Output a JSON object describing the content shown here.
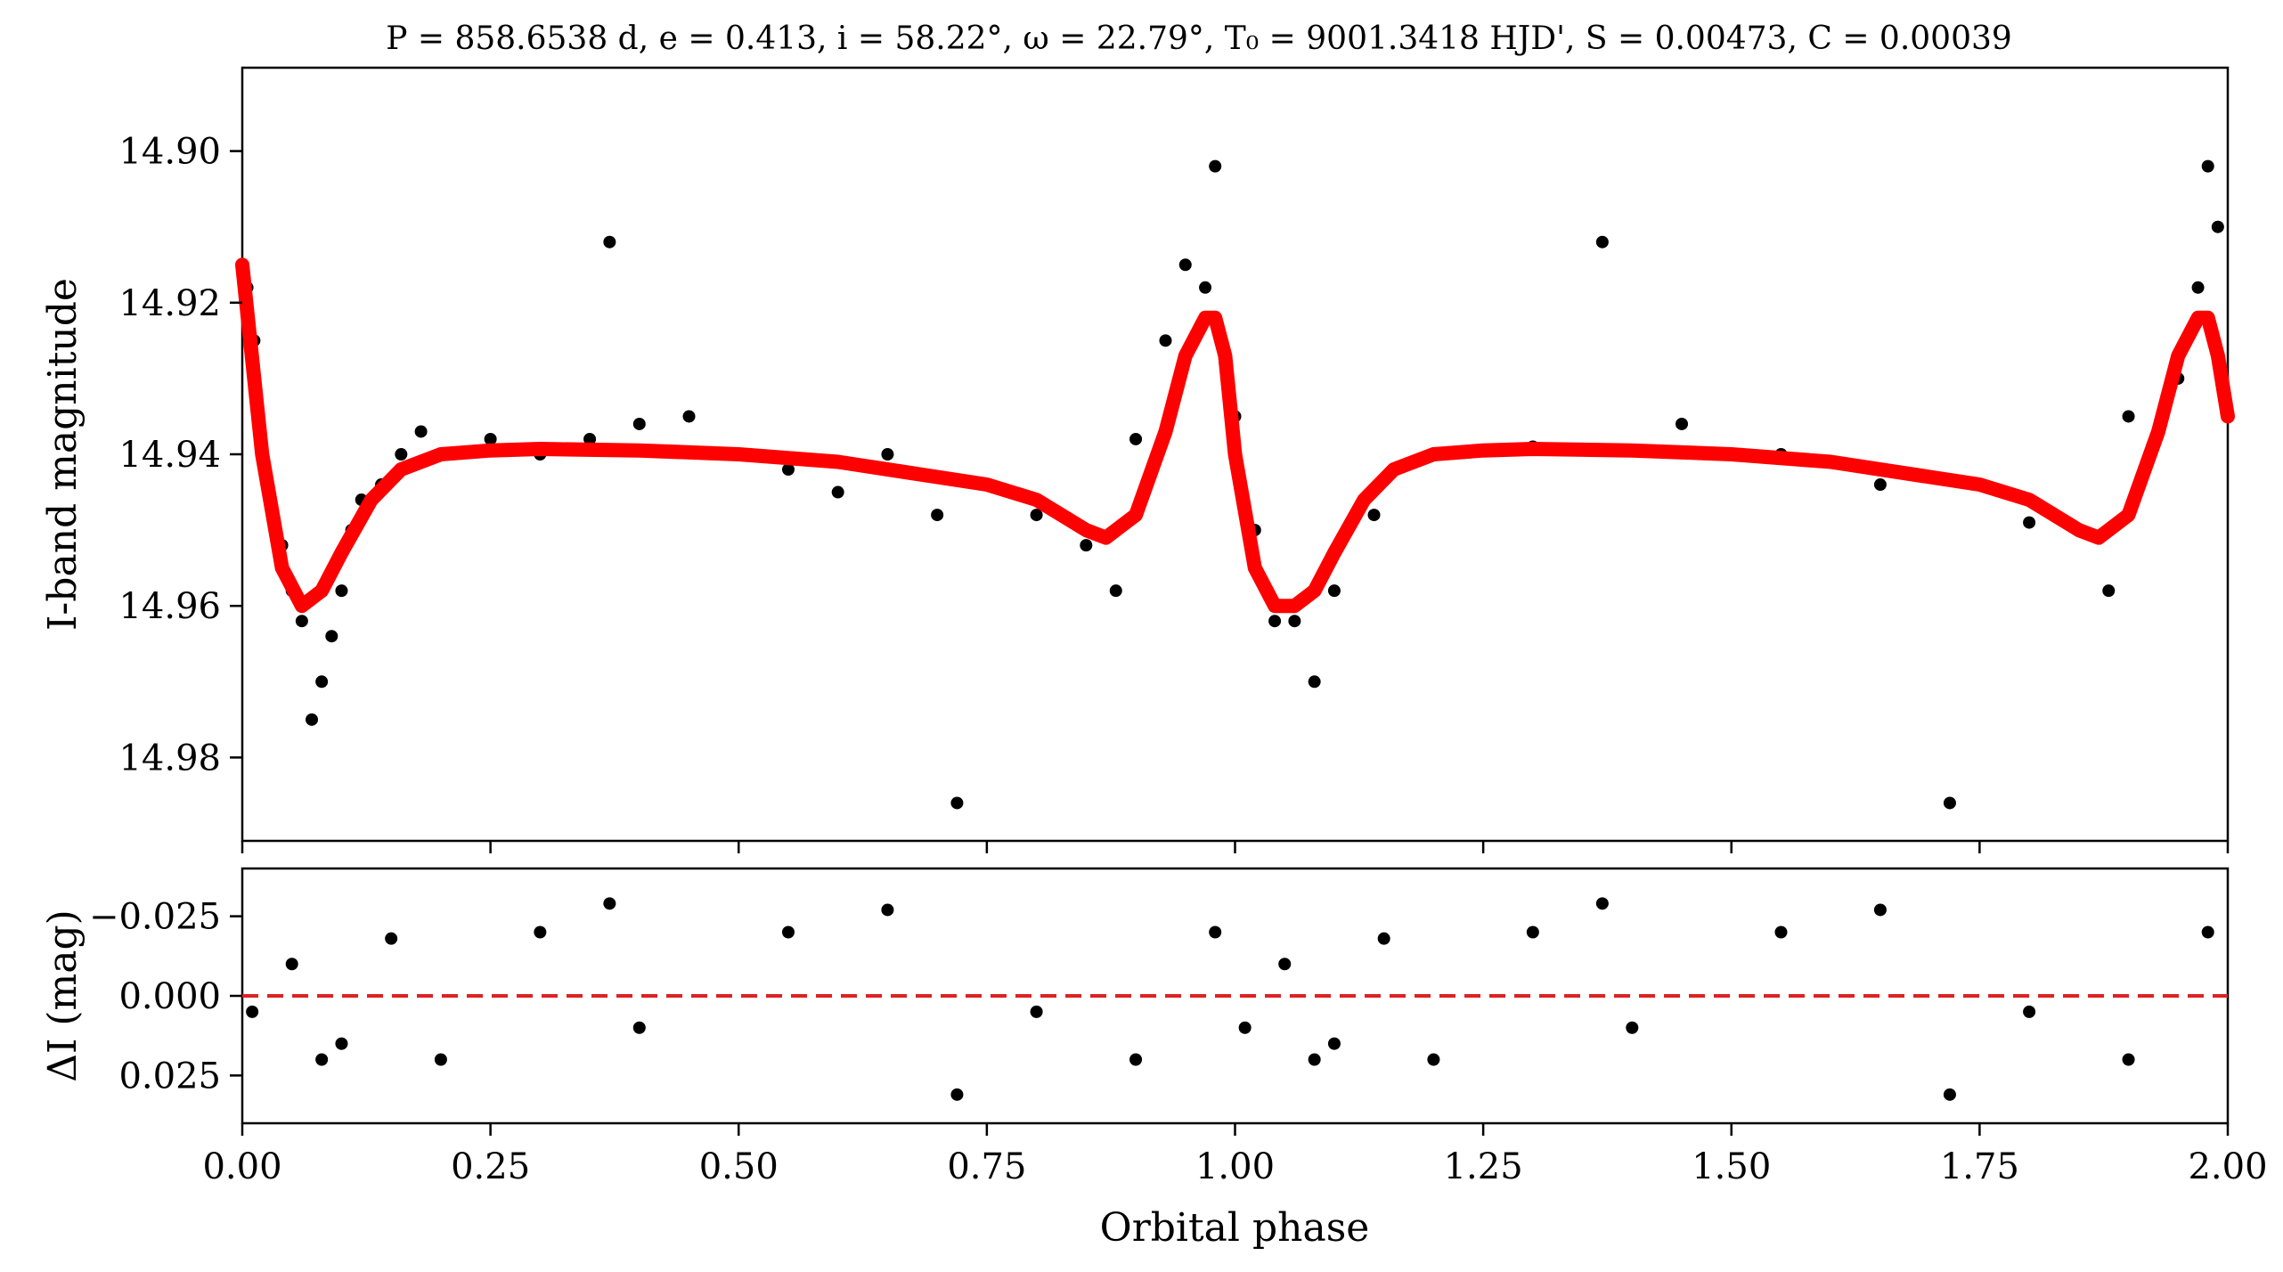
{
  "chart_data": [
    {
      "panel": "light curve",
      "type": "scatter",
      "title": "P = 858.6538 d, e = 0.413, i = 58.22°, ω = 22.79°, T₀ = 9001.3418 HJD', S = 0.00473, C = 0.00039",
      "xlabel": "",
      "ylabel": "I-band magnitude",
      "xlim": [
        0.0,
        2.0
      ],
      "ylim": [
        14.991,
        14.889
      ],
      "y_inverted": true,
      "xticks": [
        0.0,
        0.25,
        0.5,
        0.75,
        1.0,
        1.25,
        1.5,
        1.75,
        2.0
      ],
      "yticks": [
        14.9,
        14.92,
        14.94,
        14.96,
        14.98
      ],
      "ytick_labels": [
        "14.90",
        "14.92",
        "14.94",
        "14.96",
        "14.98"
      ],
      "series": [
        {
          "kind": "points",
          "color": "#000000",
          "description_values": "observed photometry, phase-folded and repeated over two cycles",
          "x": [
            0.005,
            0.012,
            0.02,
            0.03,
            0.04,
            0.05,
            0.06,
            0.07,
            0.08,
            0.09,
            0.1,
            0.11,
            0.12,
            0.14,
            0.16,
            0.18,
            0.2,
            0.25,
            0.3,
            0.35,
            0.37,
            0.4,
            0.45,
            0.5,
            0.55,
            0.6,
            0.65,
            0.7,
            0.72,
            0.75,
            0.8,
            0.85,
            0.88,
            0.9,
            0.93,
            0.95,
            0.97,
            0.98,
            0.99,
            1.0,
            1.02,
            1.04,
            1.06,
            1.08,
            1.1,
            1.14,
            1.2,
            1.3,
            1.37,
            1.45,
            1.55,
            1.65,
            1.72,
            1.8,
            1.88,
            1.9,
            1.95,
            1.97,
            1.98,
            1.99
          ],
          "y": [
            14.918,
            14.925,
            14.94,
            14.948,
            14.952,
            14.958,
            14.962,
            14.975,
            14.97,
            14.964,
            14.958,
            14.95,
            14.946,
            14.944,
            14.94,
            14.937,
            14.94,
            14.938,
            14.94,
            14.938,
            14.912,
            14.936,
            14.935,
            14.94,
            14.942,
            14.945,
            14.94,
            14.948,
            14.986,
            14.944,
            14.948,
            14.952,
            14.958,
            14.938,
            14.925,
            14.915,
            14.918,
            14.902,
            14.928,
            14.935,
            14.95,
            14.962,
            14.962,
            14.97,
            14.958,
            14.948,
            14.94,
            14.939,
            14.912,
            14.936,
            14.94,
            14.944,
            14.986,
            14.949,
            14.958,
            14.935,
            14.93,
            14.918,
            14.902,
            14.91
          ]
        },
        {
          "kind": "model",
          "color": "#ff0000",
          "x": [
            0.0,
            0.02,
            0.04,
            0.06,
            0.08,
            0.1,
            0.13,
            0.16,
            0.2,
            0.25,
            0.3,
            0.4,
            0.5,
            0.6,
            0.7,
            0.75,
            0.8,
            0.85,
            0.87,
            0.9,
            0.93,
            0.95,
            0.97,
            0.98,
            0.99,
            1.0,
            1.02,
            1.04,
            1.06,
            1.08,
            1.1,
            1.13,
            1.16,
            1.2,
            1.25,
            1.3,
            1.4,
            1.5,
            1.6,
            1.7,
            1.75,
            1.8,
            1.85,
            1.87,
            1.9,
            1.93,
            1.95,
            1.97,
            1.98,
            1.99,
            2.0
          ],
          "y": [
            14.915,
            14.94,
            14.955,
            14.96,
            14.958,
            14.953,
            14.946,
            14.942,
            14.94,
            14.9395,
            14.9393,
            14.9395,
            14.94,
            14.941,
            14.943,
            14.944,
            14.946,
            14.95,
            14.951,
            14.948,
            14.937,
            14.927,
            14.922,
            14.922,
            14.927,
            14.94,
            14.955,
            14.96,
            14.96,
            14.958,
            14.953,
            14.946,
            14.942,
            14.94,
            14.9395,
            14.9393,
            14.9395,
            14.94,
            14.941,
            14.943,
            14.944,
            14.946,
            14.95,
            14.951,
            14.948,
            14.937,
            14.927,
            14.922,
            14.922,
            14.927,
            14.935
          ]
        }
      ]
    },
    {
      "panel": "residuals",
      "type": "scatter",
      "xlabel": "Orbital phase",
      "ylabel": "ΔI (mag)",
      "xlim": [
        0.0,
        2.0
      ],
      "ylim": [
        0.04,
        -0.04
      ],
      "y_inverted": true,
      "xticks": [
        0.0,
        0.25,
        0.5,
        0.75,
        1.0,
        1.25,
        1.5,
        1.75,
        2.0
      ],
      "xtick_labels": [
        "0.00",
        "0.25",
        "0.50",
        "0.75",
        "1.00",
        "1.25",
        "1.50",
        "1.75",
        "2.00"
      ],
      "yticks": [
        -0.025,
        0.0,
        0.025
      ],
      "ytick_labels": [
        "−0.025",
        "0.000",
        "0.025"
      ],
      "series": [
        {
          "kind": "points",
          "color": "#000000",
          "x": [
            0.01,
            0.05,
            0.08,
            0.1,
            0.15,
            0.2,
            0.3,
            0.37,
            0.4,
            0.55,
            0.65,
            0.72,
            0.8,
            0.9,
            0.98,
            1.01,
            1.05,
            1.08,
            1.1,
            1.15,
            1.2,
            1.3,
            1.37,
            1.4,
            1.55,
            1.65,
            1.72,
            1.8,
            1.9,
            1.98
          ],
          "y": [
            0.005,
            -0.01,
            0.02,
            0.015,
            -0.018,
            0.02,
            -0.02,
            -0.029,
            0.01,
            -0.02,
            -0.027,
            0.031,
            0.005,
            0.02,
            -0.02,
            0.01,
            -0.01,
            0.02,
            0.015,
            -0.018,
            0.02,
            -0.02,
            -0.029,
            0.01,
            -0.02,
            -0.027,
            0.031,
            0.005,
            0.02,
            -0.02
          ]
        },
        {
          "kind": "reference-line",
          "style": "dashed",
          "color": "#dd2222",
          "y_value": 0.0
        }
      ]
    }
  ]
}
